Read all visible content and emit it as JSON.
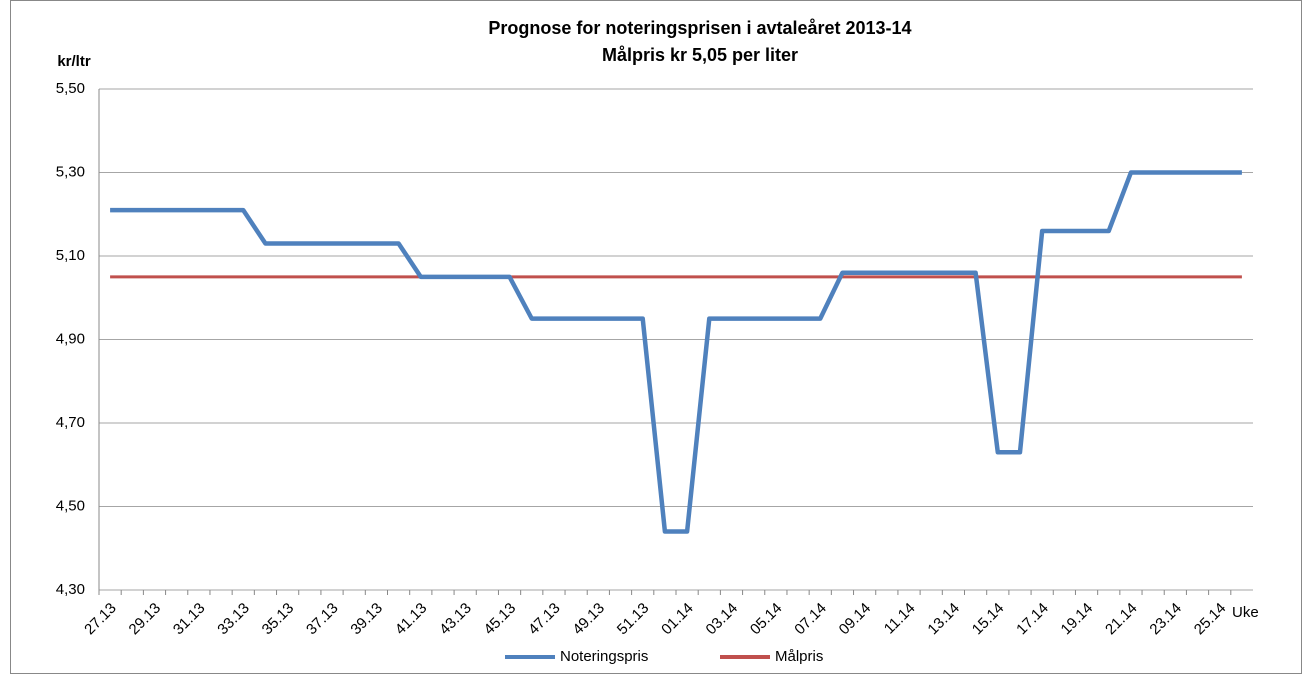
{
  "chart_data": {
    "type": "line",
    "title": "Prognose for noteringsprisen i  avtaleåret 2013-14",
    "subtitle": "Målpris kr 5,05 per liter",
    "y_label": "kr/ltr",
    "x_label": "Uke",
    "categories": [
      "27.13",
      null,
      "29.13",
      null,
      "31.13",
      null,
      "33.13",
      null,
      "35.13",
      null,
      "37.13",
      null,
      "39.13",
      null,
      "41.13",
      null,
      "43.13",
      null,
      "45.13",
      null,
      "47.13",
      null,
      "49.13",
      null,
      "51.13",
      null,
      "01.14",
      null,
      "03.14",
      null,
      "05.14",
      null,
      "07.14",
      null,
      "09.14",
      null,
      "11.14",
      null,
      "13.14",
      null,
      "15.14",
      null,
      "17.14",
      null,
      "19.14",
      null,
      "21.14",
      null,
      "23.14",
      null,
      "25.14",
      null
    ],
    "series": [
      {
        "name": "Noteringspris",
        "color": "#4f81bd",
        "values": [
          5.21,
          5.21,
          5.21,
          5.21,
          5.21,
          5.21,
          5.21,
          5.13,
          5.13,
          5.13,
          5.13,
          5.13,
          5.13,
          5.13,
          5.05,
          5.05,
          5.05,
          5.05,
          5.05,
          4.95,
          4.95,
          4.95,
          4.95,
          4.95,
          4.95,
          4.44,
          4.44,
          4.95,
          4.95,
          4.95,
          4.95,
          4.95,
          4.95,
          5.06,
          5.06,
          5.06,
          5.06,
          5.06,
          5.06,
          5.06,
          4.63,
          4.63,
          5.16,
          5.16,
          5.16,
          5.16,
          5.3,
          5.3,
          5.3,
          5.3,
          5.3,
          5.3
        ]
      },
      {
        "name": "Målpris",
        "color": "#c0504d",
        "values": [
          5.05,
          5.05,
          5.05,
          5.05,
          5.05,
          5.05,
          5.05,
          5.05,
          5.05,
          5.05,
          5.05,
          5.05,
          5.05,
          5.05,
          5.05,
          5.05,
          5.05,
          5.05,
          5.05,
          5.05,
          5.05,
          5.05,
          5.05,
          5.05,
          5.05,
          5.05,
          5.05,
          5.05,
          5.05,
          5.05,
          5.05,
          5.05,
          5.05,
          5.05,
          5.05,
          5.05,
          5.05,
          5.05,
          5.05,
          5.05,
          5.05,
          5.05,
          5.05,
          5.05,
          5.05,
          5.05,
          5.05,
          5.05,
          5.05,
          5.05,
          5.05,
          5.05
        ]
      }
    ],
    "ylim": [
      4.3,
      5.5
    ],
    "yticks": [
      {
        "value": 4.3,
        "label": "4,30"
      },
      {
        "value": 4.5,
        "label": "4,50"
      },
      {
        "value": 4.7,
        "label": "4,70"
      },
      {
        "value": 4.9,
        "label": "4,90"
      },
      {
        "value": 5.1,
        "label": "5,10"
      },
      {
        "value": 5.3,
        "label": "5,30"
      },
      {
        "value": 5.5,
        "label": "5,50"
      }
    ],
    "grid": true,
    "legend": "bottom"
  }
}
